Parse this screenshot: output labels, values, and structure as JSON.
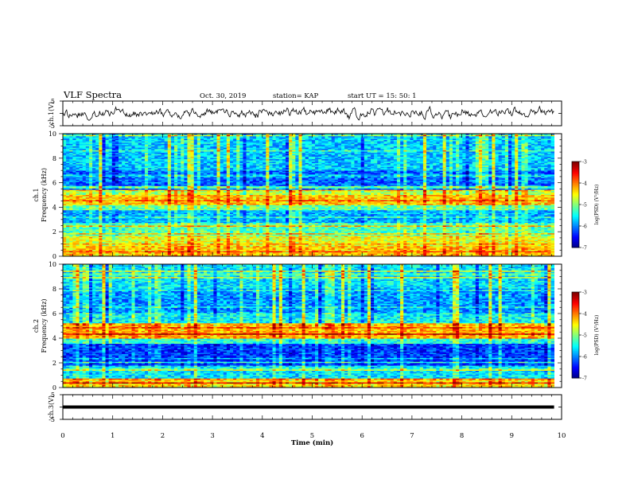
{
  "header": {
    "title": "VLF Spectra",
    "date": "Oct. 30, 2019",
    "station": "station= KAP",
    "start": "start  UT  =   15: 50: 1"
  },
  "chart_data": [
    {
      "type": "line",
      "panel": "ch1-waveform",
      "ylabel": "ch.1(V)",
      "ylim": [
        -5,
        5
      ],
      "yticks": [
        "5",
        "-5"
      ],
      "xlim": [
        0,
        10
      ],
      "description_of_series": "dense noisy waveform fluctuating mostly between -2 and 2 V"
    },
    {
      "type": "heatmap",
      "panel": "ch1-spectrogram",
      "ylabel_top": "ch.1",
      "ylabel": "Frequency (kHz)",
      "ylim": [
        0,
        10
      ],
      "yticks": [
        "0",
        "2",
        "4",
        "6",
        "8",
        "10"
      ],
      "xlim": [
        0,
        10
      ],
      "data_end_min": 9.85,
      "colorbar": {
        "label": "log(PSD) (V²/Hz)",
        "range": [
          -7,
          -3
        ],
        "ticks": [
          "-3",
          "-4",
          "-5",
          "-6",
          "-7"
        ]
      },
      "bands": [
        {
          "f": [
            0.0,
            0.8
          ],
          "level": -4.3
        },
        {
          "f": [
            0.8,
            1.7
          ],
          "level": -4.6
        },
        {
          "f": [
            1.7,
            2.7
          ],
          "level": -5.2
        },
        {
          "f": [
            2.7,
            3.7
          ],
          "level": -5.8
        },
        {
          "f": [
            3.7,
            4.2
          ],
          "level": -5.1
        },
        {
          "f": [
            4.2,
            5.0
          ],
          "level": -4.3
        },
        {
          "f": [
            5.0,
            5.4
          ],
          "level": -4.8
        },
        {
          "f": [
            5.4,
            7.0
          ],
          "level": -6.1
        },
        {
          "f": [
            7.0,
            10.0
          ],
          "level": -5.7
        }
      ]
    },
    {
      "type": "heatmap",
      "panel": "ch2-spectrogram",
      "ylabel_top": "ch.2",
      "ylabel": "Frequency (kHz)",
      "ylim": [
        0,
        10
      ],
      "yticks": [
        "0",
        "2",
        "4",
        "6",
        "8",
        "10"
      ],
      "xlim": [
        0,
        10
      ],
      "data_end_min": 9.85,
      "colorbar": {
        "label": "log(PSD) (V²/Hz)",
        "range": [
          -7,
          -3
        ],
        "ticks": [
          "-3",
          "-4",
          "-5",
          "-6",
          "-7"
        ]
      },
      "bands": [
        {
          "f": [
            0.0,
            0.7
          ],
          "level": -4.4
        },
        {
          "f": [
            0.7,
            1.8
          ],
          "level": -5.6
        },
        {
          "f": [
            1.8,
            3.5
          ],
          "level": -6.3
        },
        {
          "f": [
            3.5,
            4.0
          ],
          "level": -5.4
        },
        {
          "f": [
            4.0,
            5.2
          ],
          "level": -4.2
        },
        {
          "f": [
            5.2,
            6.0
          ],
          "level": -5.5
        },
        {
          "f": [
            6.0,
            8.0
          ],
          "level": -5.9
        },
        {
          "f": [
            8.0,
            10.0
          ],
          "level": -5.6
        }
      ]
    },
    {
      "type": "line",
      "panel": "ch3-waveform",
      "ylabel": "ch.3(V)",
      "ylim": [
        -5,
        5
      ],
      "yticks": [
        "5",
        "-5"
      ],
      "xlim": [
        0,
        10
      ],
      "xlabel": "Time (min)",
      "xticks": [
        "0",
        "1",
        "2",
        "3",
        "4",
        "5",
        "6",
        "7",
        "8",
        "9",
        "10"
      ],
      "series": [
        {
          "x": [
            0,
            9.85
          ],
          "y": [
            0,
            0
          ]
        }
      ]
    }
  ]
}
